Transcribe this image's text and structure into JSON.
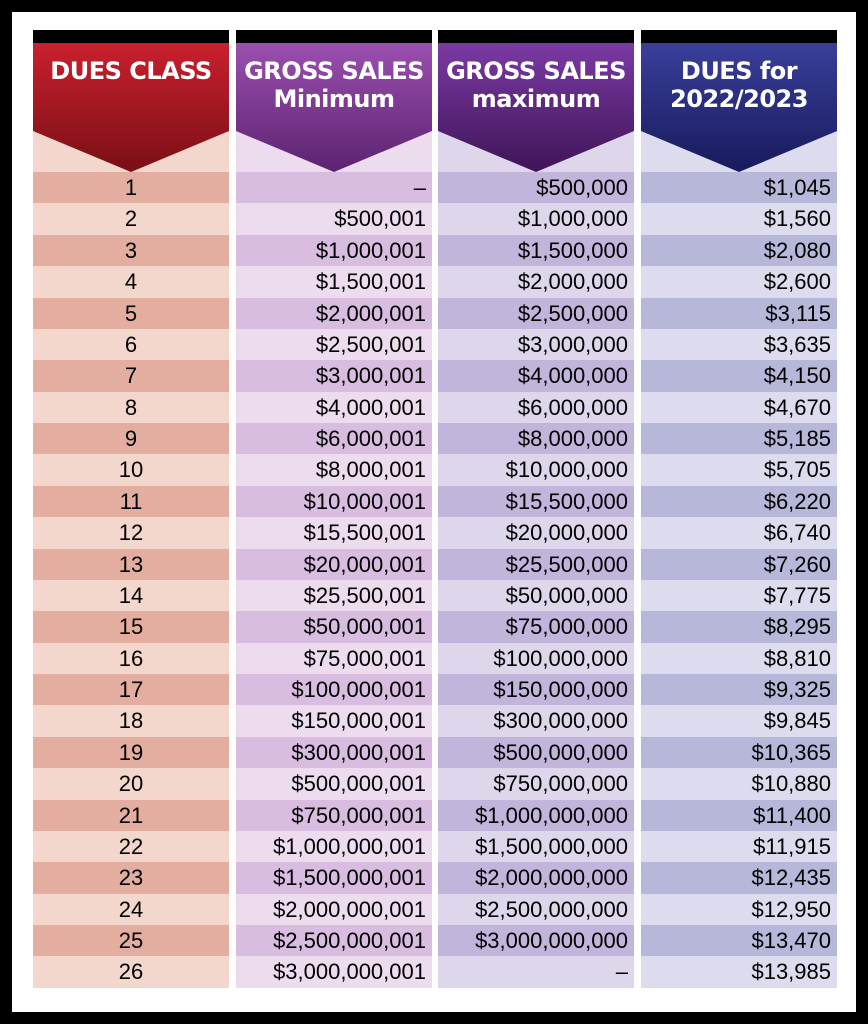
{
  "columns": [
    {
      "line1": "DUES CLASS",
      "line2": ""
    },
    {
      "line1": "GROSS SALES",
      "line2": "Minimum"
    },
    {
      "line1": "GROSS SALES",
      "line2": "maximum"
    },
    {
      "line1": "DUES for",
      "line2": "2022/2023"
    }
  ],
  "colors": {
    "col0": {
      "header_top": "#c9202e",
      "header_bottom": "#7a0f14",
      "light": "#f3d7cc",
      "dark": "#e3ae9f"
    },
    "col1": {
      "header_top": "#9b4fb0",
      "header_bottom": "#5c2370",
      "light": "#ecdcee",
      "dark": "#d8bde0"
    },
    "col2": {
      "header_top": "#7b3aa3",
      "header_bottom": "#3f1458",
      "light": "#ded7ec",
      "dark": "#c2b5dc"
    },
    "col3": {
      "header_top": "#3a3f9a",
      "header_bottom": "#181a5c",
      "light": "#dcdcee",
      "dark": "#b7b7da"
    }
  },
  "rows": [
    {
      "class": "1",
      "min": "–",
      "max": "$500,000",
      "dues": "$1,045"
    },
    {
      "class": "2",
      "min": "$500,001",
      "max": "$1,000,000",
      "dues": "$1,560"
    },
    {
      "class": "3",
      "min": "$1,000,001",
      "max": "$1,500,000",
      "dues": "$2,080"
    },
    {
      "class": "4",
      "min": "$1,500,001",
      "max": "$2,000,000",
      "dues": "$2,600"
    },
    {
      "class": "5",
      "min": "$2,000,001",
      "max": "$2,500,000",
      "dues": "$3,115"
    },
    {
      "class": "6",
      "min": "$2,500,001",
      "max": "$3,000,000",
      "dues": "$3,635"
    },
    {
      "class": "7",
      "min": "$3,000,001",
      "max": "$4,000,000",
      "dues": "$4,150"
    },
    {
      "class": "8",
      "min": "$4,000,001",
      "max": "$6,000,000",
      "dues": "$4,670"
    },
    {
      "class": "9",
      "min": "$6,000,001",
      "max": "$8,000,000",
      "dues": "$5,185"
    },
    {
      "class": "10",
      "min": "$8,000,001",
      "max": "$10,000,000",
      "dues": "$5,705"
    },
    {
      "class": "11",
      "min": "$10,000,001",
      "max": "$15,500,000",
      "dues": "$6,220"
    },
    {
      "class": "12",
      "min": "$15,500,001",
      "max": "$20,000,000",
      "dues": "$6,740"
    },
    {
      "class": "13",
      "min": "$20,000,001",
      "max": "$25,500,000",
      "dues": "$7,260"
    },
    {
      "class": "14",
      "min": "$25,500,001",
      "max": "$50,000,000",
      "dues": "$7,775"
    },
    {
      "class": "15",
      "min": "$50,000,001",
      "max": "$75,000,000",
      "dues": "$8,295"
    },
    {
      "class": "16",
      "min": "$75,000,001",
      "max": "$100,000,000",
      "dues": "$8,810"
    },
    {
      "class": "17",
      "min": "$100,000,001",
      "max": "$150,000,000",
      "dues": "$9,325"
    },
    {
      "class": "18",
      "min": "$150,000,001",
      "max": "$300,000,000",
      "dues": "$9,845"
    },
    {
      "class": "19",
      "min": "$300,000,001",
      "max": "$500,000,000",
      "dues": "$10,365"
    },
    {
      "class": "20",
      "min": "$500,000,001",
      "max": "$750,000,000",
      "dues": "$10,880"
    },
    {
      "class": "21",
      "min": "$750,000,001",
      "max": "$1,000,000,000",
      "dues": "$11,400"
    },
    {
      "class": "22",
      "min": "$1,000,000,001",
      "max": "$1,500,000,000",
      "dues": "$11,915"
    },
    {
      "class": "23",
      "min": "$1,500,000,001",
      "max": "$2,000,000,000",
      "dues": "$12,435"
    },
    {
      "class": "24",
      "min": "$2,000,000,001",
      "max": "$2,500,000,000",
      "dues": "$12,950"
    },
    {
      "class": "25",
      "min": "$2,500,000,001",
      "max": "$3,000,000,000",
      "dues": "$13,470"
    },
    {
      "class": "26",
      "min": "$3,000,000,001",
      "max": "–",
      "dues": "$13,985"
    }
  ]
}
